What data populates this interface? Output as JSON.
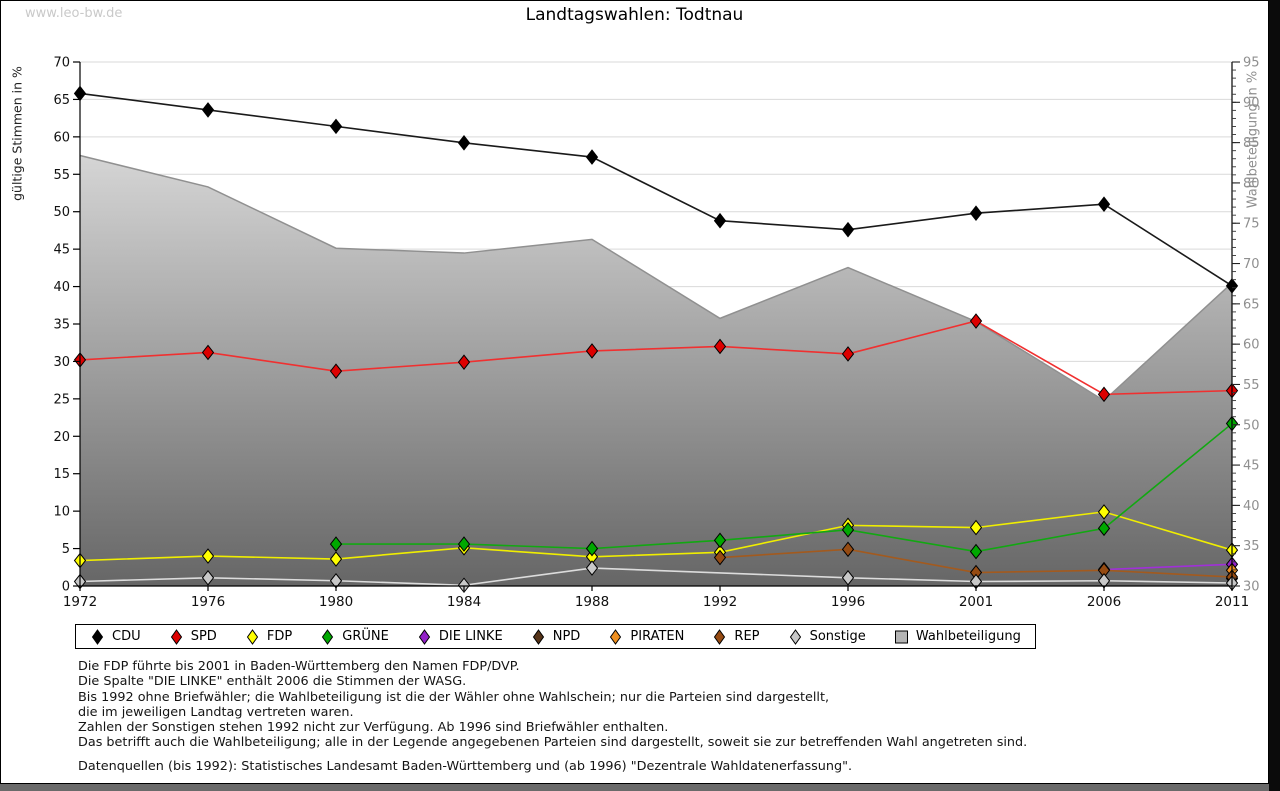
{
  "page": {
    "watermark": "www.leo-bw.de"
  },
  "chart_data": {
    "type": "line",
    "title": "Landtagswahlen: Todtnau",
    "years": [
      1972,
      1976,
      1980,
      1984,
      1988,
      1992,
      1996,
      2001,
      2006,
      2011
    ],
    "left_axis": {
      "label": "gültige Stimmen in %",
      "min": 0,
      "max": 70,
      "tick_step": 5
    },
    "right_axis": {
      "label": "Wahlbeteiligung in %",
      "min": 30,
      "max": 95,
      "tick_step": 5,
      "minor_step": 1
    },
    "grid": true,
    "legend_position": "bottom",
    "series": [
      {
        "name": "CDU",
        "color": "#000000",
        "line_color": "#1a1a1a",
        "axis": "left",
        "values": [
          65.8,
          63.6,
          61.4,
          59.2,
          57.3,
          48.8,
          47.6,
          49.8,
          51.0,
          40.1
        ]
      },
      {
        "name": "SPD",
        "color": "#dd0000",
        "line_color": "#f03030",
        "axis": "left",
        "values": [
          30.2,
          31.2,
          28.7,
          29.9,
          31.4,
          32.0,
          31.0,
          35.4,
          25.6,
          26.1
        ]
      },
      {
        "name": "FDP",
        "color": "#ffff00",
        "line_color": "#f0ee00",
        "axis": "left",
        "values": [
          3.4,
          4.0,
          3.6,
          5.1,
          3.9,
          4.5,
          8.1,
          7.8,
          9.9,
          4.8
        ]
      },
      {
        "name": "GRÜNE",
        "color": "#00a800",
        "line_color": "#12a812",
        "axis": "left",
        "values": [
          null,
          null,
          5.6,
          5.6,
          5.0,
          6.1,
          7.5,
          4.6,
          7.7,
          21.7
        ]
      },
      {
        "name": "DIE LINKE",
        "color": "#9320c8",
        "line_color": "#a030d8",
        "axis": "left",
        "values": [
          null,
          null,
          null,
          null,
          null,
          null,
          null,
          null,
          2.2,
          2.9
        ]
      },
      {
        "name": "NPD",
        "color": "#553318",
        "line_color": "#553318",
        "axis": "left",
        "values": [
          null,
          null,
          null,
          null,
          null,
          null,
          null,
          null,
          null,
          1.0
        ]
      },
      {
        "name": "PIRATEN",
        "color": "#ef8f1f",
        "line_color": "#ef8f1f",
        "axis": "left",
        "values": [
          null,
          null,
          null,
          null,
          null,
          null,
          null,
          null,
          null,
          2.1
        ]
      },
      {
        "name": "REP",
        "color": "#964b12",
        "line_color": "#a35a1e",
        "axis": "left",
        "values": [
          null,
          null,
          null,
          null,
          null,
          3.8,
          4.9,
          1.8,
          2.1,
          1.2
        ]
      },
      {
        "name": "Sonstige",
        "color": "#c8c8c8",
        "line_color": "#dcdcdc",
        "axis": "left",
        "values": [
          0.6,
          1.1,
          0.7,
          0.1,
          2.4,
          null,
          1.1,
          0.6,
          0.7,
          0.4
        ]
      },
      {
        "name": "Wahlbeteiligung",
        "type": "area",
        "color": "#b4b4b4",
        "edge_color": "#909090",
        "axis": "right",
        "values": [
          83.4,
          79.5,
          71.9,
          71.3,
          73.0,
          63.2,
          69.5,
          62.8,
          53.0,
          67.6
        ]
      }
    ]
  },
  "notes": [
    "Die FDP führte bis 2001 in Baden-Württemberg den Namen FDP/DVP.",
    "Die Spalte \"DIE LINKE\" enthält 2006 die Stimmen der WASG.",
    "Bis 1992 ohne Briefwähler; die Wahlbeteiligung ist die der Wähler ohne Wahlschein; nur die Parteien sind dargestellt,",
    "die im jeweiligen Landtag vertreten waren.",
    "Zahlen der Sonstigen stehen 1992 nicht zur Verfügung. Ab 1996 sind Briefwähler enthalten.",
    "Das betrifft auch die Wahlbeteiligung; alle in der Legende angegebenen Parteien sind dargestellt, soweit sie zur betreffenden Wahl angetreten sind."
  ],
  "source": "Datenquellen (bis 1992): Statistisches Landesamt Baden-Württemberg und (ab 1996) \"Dezentrale Wahldatenerfassung\"."
}
